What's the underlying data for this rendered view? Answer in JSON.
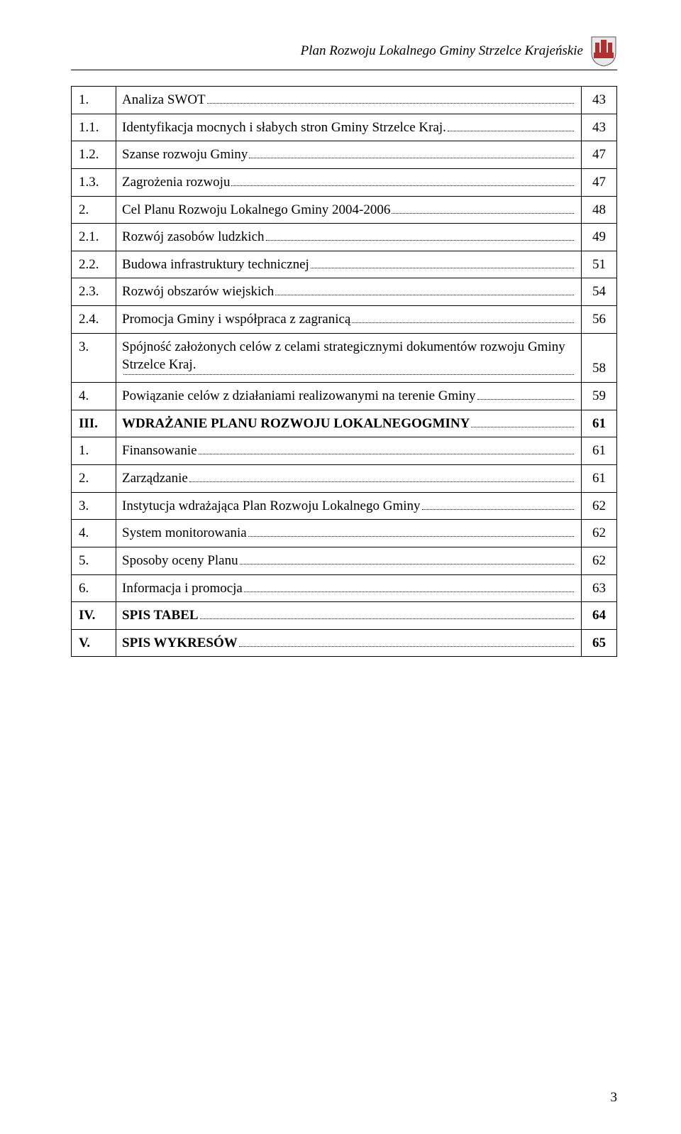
{
  "header": {
    "title": "Plan Rozwoju Lokalnego Gminy Strzelce Krajeńskie"
  },
  "crest": {
    "shield_fill": "#e8e8e8",
    "shield_stroke": "#555555",
    "tower_fill": "#b03030",
    "tower_stroke": "#7a1f1f"
  },
  "toc": [
    {
      "num": "1.",
      "label": "Analiza SWOT",
      "page": "43",
      "bold": false
    },
    {
      "num": "1.1.",
      "label": "Identyfikacja mocnych i słabych stron Gminy Strzelce Kraj.",
      "page": "43",
      "bold": false
    },
    {
      "num": "1.2.",
      "label": "Szanse rozwoju Gminy",
      "page": "47",
      "bold": false
    },
    {
      "num": "1.3.",
      "label": "Zagrożenia rozwoju",
      "page": "47",
      "bold": false
    },
    {
      "num": "2.",
      "label": "Cel Planu Rozwoju Lokalnego Gminy 2004-2006",
      "page": "48",
      "bold": false
    },
    {
      "num": "2.1.",
      "label": "Rozwój zasobów ludzkich",
      "page": "49",
      "bold": false
    },
    {
      "num": "2.2.",
      "label": "Budowa infrastruktury technicznej",
      "page": "51",
      "bold": false
    },
    {
      "num": "2.3.",
      "label": "Rozwój obszarów wiejskich",
      "page": "54",
      "bold": false
    },
    {
      "num": "2.4.",
      "label": "Promocja Gminy i współpraca z zagranicą",
      "page": "56",
      "bold": false
    },
    {
      "num": "3.",
      "label": "Spójność założonych celów z celami strategicznymi dokumentów rozwoju Gminy Strzelce Kraj.",
      "page": "58",
      "bold": false,
      "multiline": true
    },
    {
      "num": "4.",
      "label": "Powiązanie celów z działaniami realizowanymi na terenie Gminy",
      "page": "59",
      "bold": false
    },
    {
      "num": "III.",
      "label": "WDRAŻANIE PLANU ROZWOJU LOKALNEGOGMINY",
      "page": "61",
      "bold": true
    },
    {
      "num": "1.",
      "label": "Finansowanie",
      "page": "61",
      "bold": false
    },
    {
      "num": "2.",
      "label": "Zarządzanie",
      "page": "61",
      "bold": false
    },
    {
      "num": "3.",
      "label": "Instytucja wdrażająca Plan Rozwoju Lokalnego Gminy",
      "page": "62",
      "bold": false
    },
    {
      "num": "4.",
      "label": "System monitorowania",
      "page": "62",
      "bold": false
    },
    {
      "num": "5.",
      "label": "Sposoby oceny Planu",
      "page": "62",
      "bold": false
    },
    {
      "num": "6.",
      "label": "Informacja i promocja",
      "page": "63",
      "bold": false
    },
    {
      "num": "IV.",
      "label": "SPIS TABEL",
      "page": "64",
      "bold": true
    },
    {
      "num": "V.",
      "label": "SPIS WYKRESÓW",
      "page": "65",
      "bold": true
    }
  ],
  "page_number": "3"
}
